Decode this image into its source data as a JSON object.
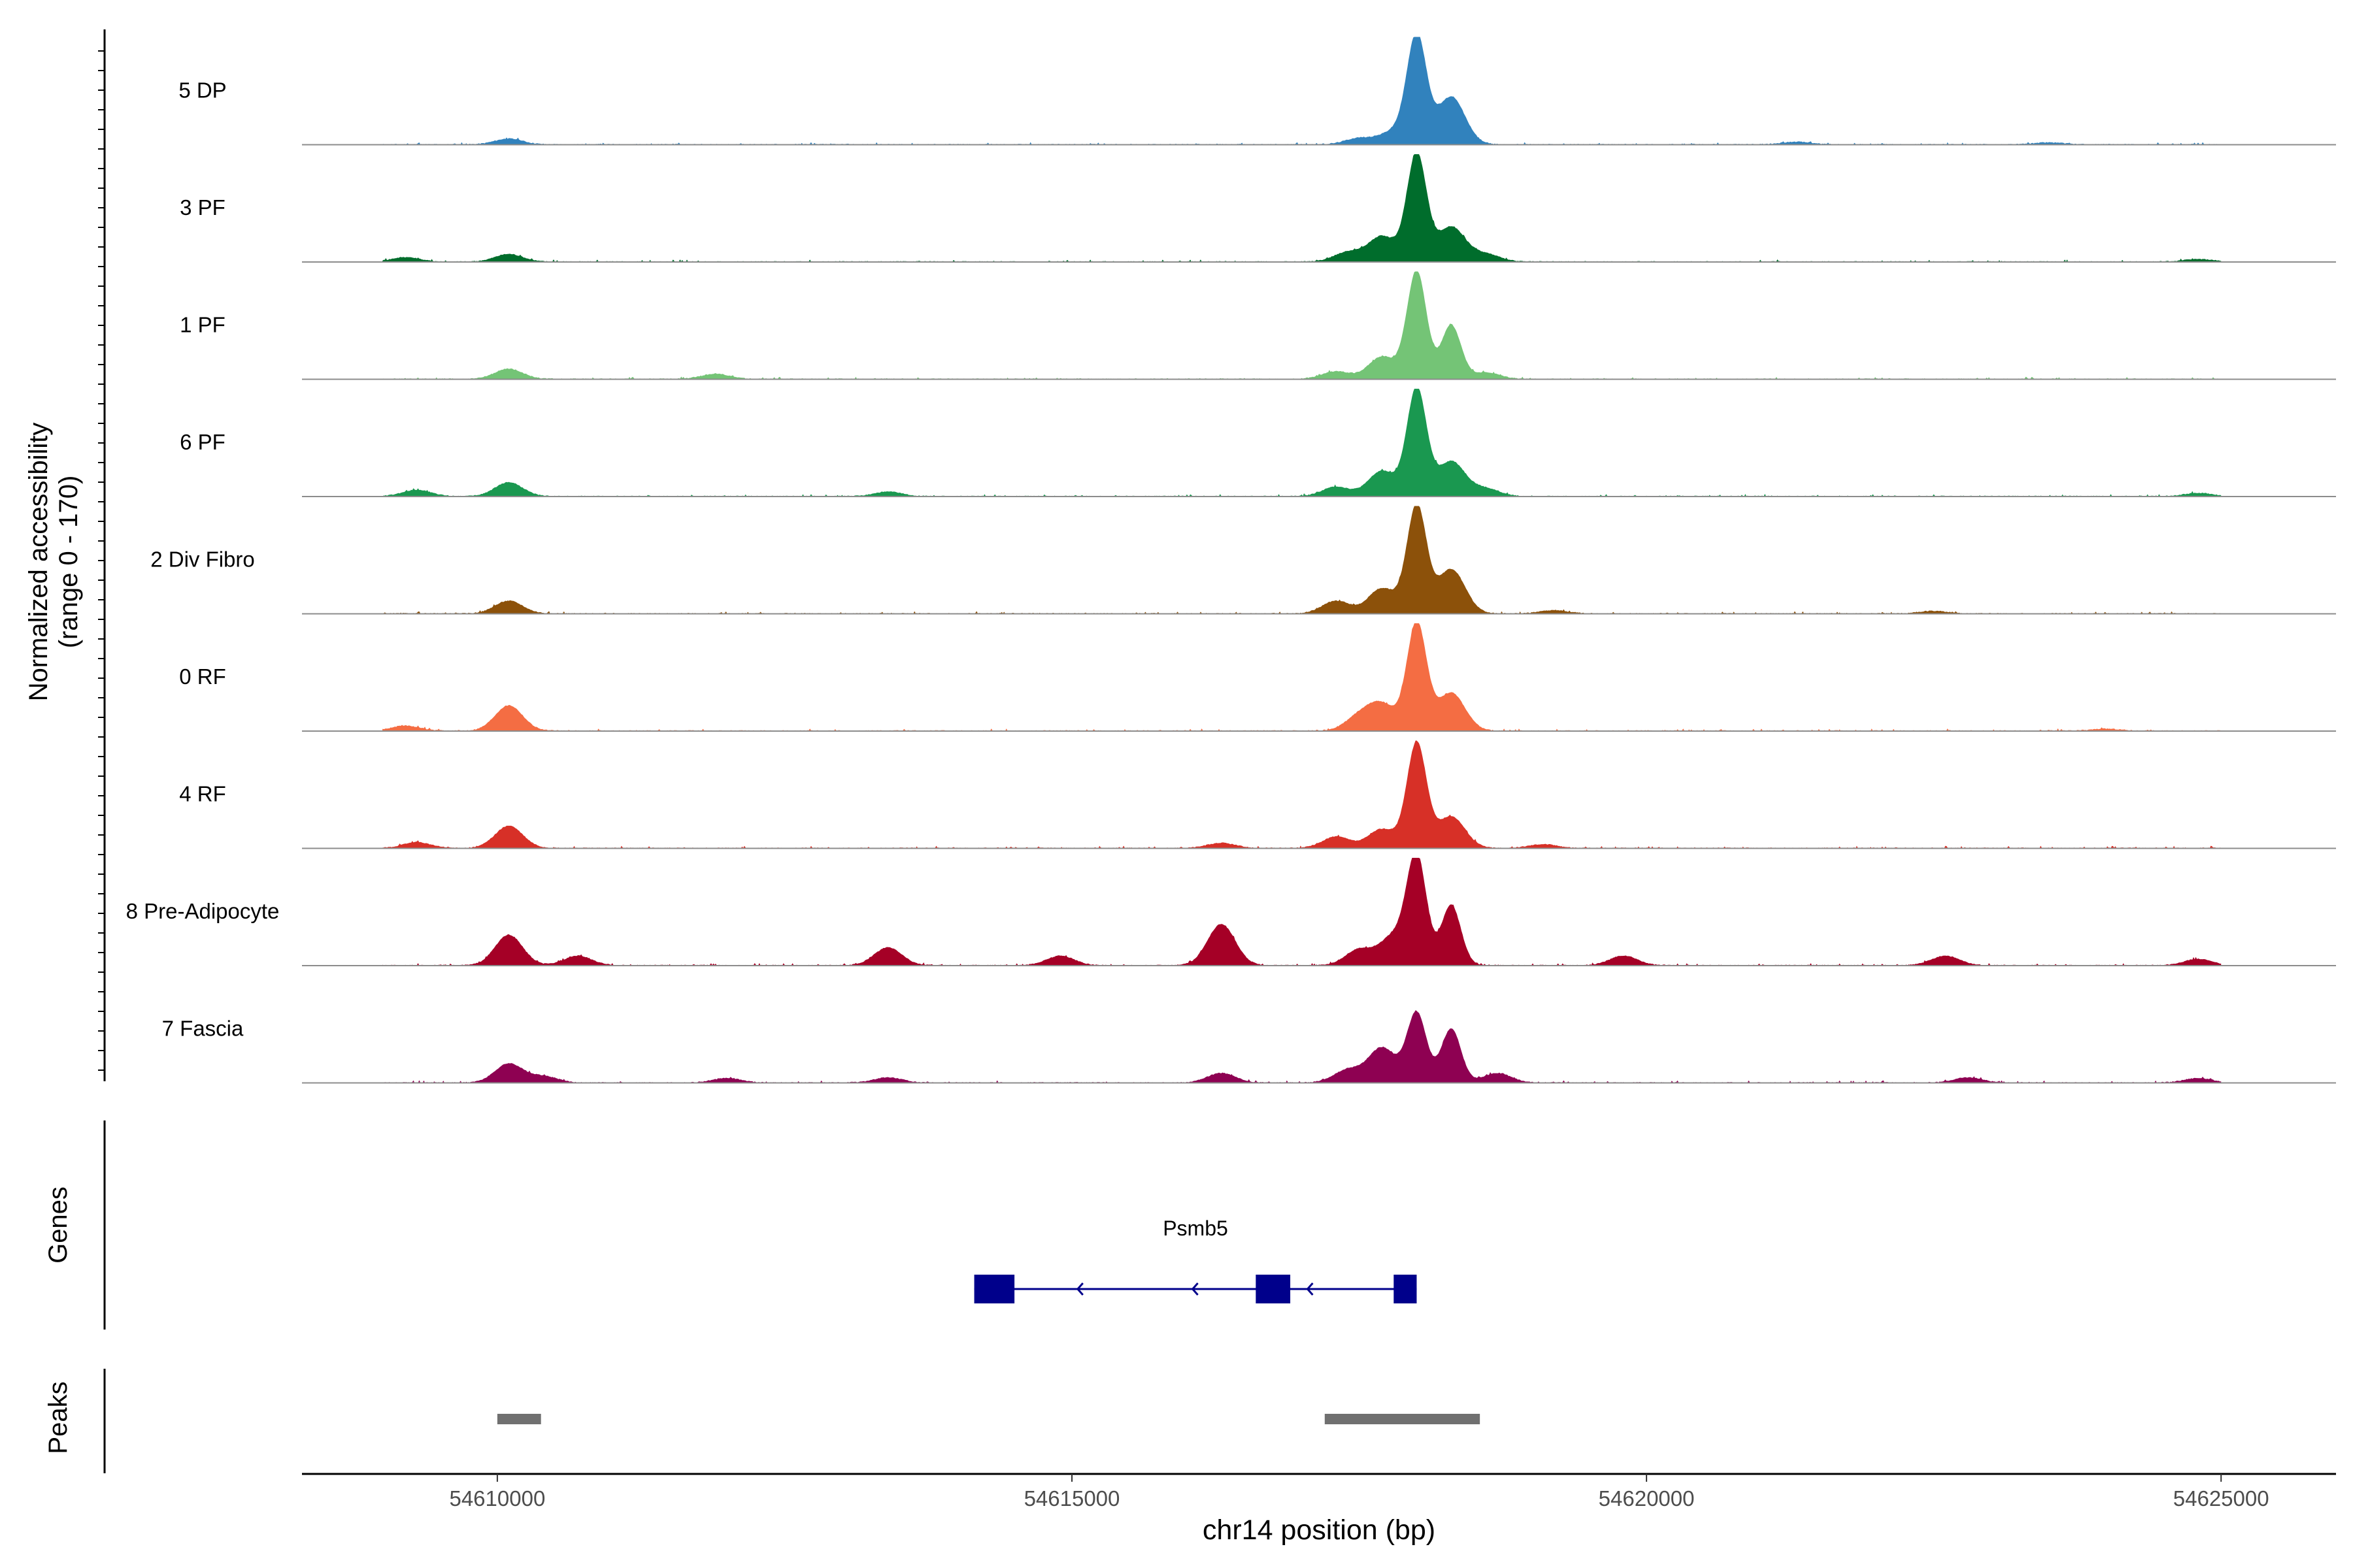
{
  "chart_data": {
    "type": "area",
    "title": "",
    "ylabel_line1": "Normalized accessibility",
    "ylabel_line2": "(range 0 - 170)",
    "yrange": [
      0,
      170
    ],
    "xlabel": "chr14 position (bp)",
    "xlim": [
      54608300,
      54626000
    ],
    "x_ticks": [
      54610000,
      54615000,
      54620000,
      54625000
    ],
    "x_tick_labels": [
      "54610000",
      "54615000",
      "54620000",
      "54625000"
    ],
    "tracks": [
      {
        "name": "5 DP",
        "color": "#3182BD",
        "peaks": [
          [
            54610100,
            9
          ],
          [
            54617500,
            10
          ],
          [
            54617800,
            20
          ],
          [
            54618000,
            170
          ],
          [
            54618300,
            75
          ],
          [
            54621300,
            4
          ],
          [
            54623500,
            3
          ]
        ]
      },
      {
        "name": "3 PF",
        "color": "#006D2C",
        "peaks": [
          [
            54609200,
            7
          ],
          [
            54610100,
            12
          ],
          [
            54617400,
            15
          ],
          [
            54617700,
            40
          ],
          [
            54618000,
            170
          ],
          [
            54618300,
            55
          ],
          [
            54618600,
            12
          ],
          [
            54624800,
            4
          ]
        ]
      },
      {
        "name": "1 PF",
        "color": "#74C476",
        "peaks": [
          [
            54610100,
            16
          ],
          [
            54611900,
            8
          ],
          [
            54617300,
            12
          ],
          [
            54617700,
            35
          ],
          [
            54618000,
            170
          ],
          [
            54618300,
            85
          ],
          [
            54618600,
            10
          ]
        ]
      },
      {
        "name": "6 PF",
        "color": "#1A9850",
        "peaks": [
          [
            54609300,
            10
          ],
          [
            54610100,
            22
          ],
          [
            54613400,
            7
          ],
          [
            54617300,
            15
          ],
          [
            54617700,
            40
          ],
          [
            54618000,
            170
          ],
          [
            54618300,
            55
          ],
          [
            54618600,
            12
          ],
          [
            54624800,
            5
          ]
        ]
      },
      {
        "name": "2 Div Fibro",
        "color": "#8C510A",
        "peaks": [
          [
            54610100,
            20
          ],
          [
            54617300,
            20
          ],
          [
            54617700,
            40
          ],
          [
            54618000,
            170
          ],
          [
            54618300,
            70
          ],
          [
            54619200,
            5
          ],
          [
            54622500,
            4
          ]
        ]
      },
      {
        "name": "0 RF",
        "color": "#F46D43",
        "peaks": [
          [
            54609200,
            8
          ],
          [
            54610100,
            40
          ],
          [
            54617500,
            22
          ],
          [
            54617700,
            40
          ],
          [
            54618000,
            170
          ],
          [
            54618300,
            60
          ],
          [
            54624000,
            3
          ]
        ]
      },
      {
        "name": "4 RF",
        "color": "#D73027",
        "peaks": [
          [
            54609300,
            9
          ],
          [
            54610100,
            35
          ],
          [
            54616300,
            8
          ],
          [
            54617300,
            18
          ],
          [
            54617700,
            30
          ],
          [
            54618000,
            165
          ],
          [
            54618300,
            50
          ],
          [
            54619100,
            6
          ]
        ]
      },
      {
        "name": "8 Pre-Adipocyte",
        "color": "#A50026",
        "peaks": [
          [
            54610100,
            48
          ],
          [
            54610700,
            15
          ],
          [
            54613400,
            28
          ],
          [
            54614900,
            15
          ],
          [
            54616300,
            65
          ],
          [
            54617500,
            25
          ],
          [
            54617800,
            45
          ],
          [
            54618000,
            170
          ],
          [
            54618300,
            95
          ],
          [
            54619800,
            15
          ],
          [
            54622600,
            15
          ],
          [
            54624800,
            10
          ]
        ]
      },
      {
        "name": "7 Fascia",
        "color": "#8E0152",
        "peaks": [
          [
            54610100,
            30
          ],
          [
            54610400,
            10
          ],
          [
            54612000,
            7
          ],
          [
            54613400,
            8
          ],
          [
            54616300,
            15
          ],
          [
            54617400,
            20
          ],
          [
            54617700,
            55
          ],
          [
            54618000,
            110
          ],
          [
            54618300,
            85
          ],
          [
            54618700,
            15
          ],
          [
            54622800,
            8
          ],
          [
            54624800,
            7
          ]
        ]
      }
    ],
    "genes_label": "Genes",
    "gene": {
      "name": "Psmb5",
      "strand": "-",
      "color": "#00008B",
      "start": 54614150,
      "end": 54618000,
      "exons": [
        [
          54614150,
          54614500
        ],
        [
          54616600,
          54616900
        ],
        [
          54617800,
          54618000
        ]
      ],
      "arrows": [
        54615050,
        54616050,
        54617050
      ]
    },
    "peaks_label": "Peaks",
    "peak_color": "#707070",
    "peak_regions": [
      [
        54610000,
        54610380
      ],
      [
        54617200,
        54618550
      ]
    ]
  }
}
